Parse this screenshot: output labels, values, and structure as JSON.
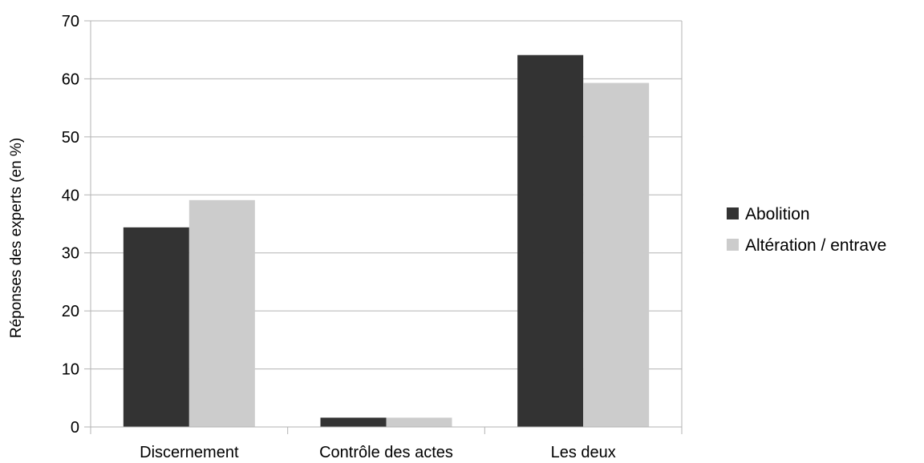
{
  "chart_data": {
    "type": "bar",
    "categories": [
      "Discernement",
      "Contrôle des actes",
      "Les deux"
    ],
    "series": [
      {
        "name": "Abolition",
        "values": [
          34.4,
          1.6,
          64.1
        ],
        "color": "#333333"
      },
      {
        "name": "Altération / entrave",
        "values": [
          39.1,
          1.6,
          59.3
        ],
        "color": "#cccccc"
      }
    ],
    "xlabel": "",
    "ylabel": "Réponses des experts (en %)",
    "ylim": [
      0,
      70
    ],
    "yticks": [
      0,
      10,
      20,
      30,
      40,
      50,
      60,
      70
    ],
    "grid": true,
    "legend_position": "right"
  }
}
